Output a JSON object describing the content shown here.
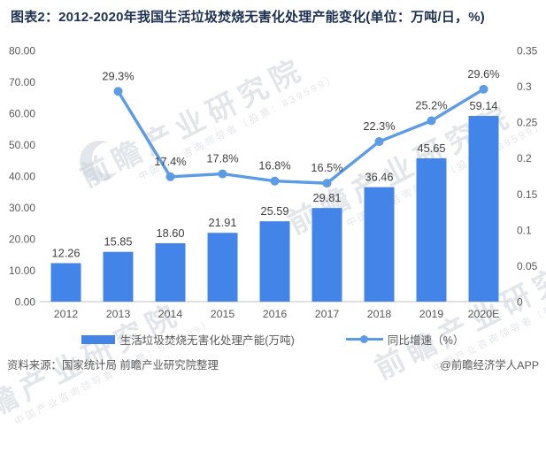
{
  "title": "图表2：2012-2020年我国生活垃圾焚烧无害化处理产能变化(单位：万吨/日，%)",
  "chart_data": {
    "type": "bar+line",
    "title": "图表2：2012-2020年我国生活垃圾焚烧无害化处理产能变化(单位：万吨/日，%)",
    "categories": [
      "2012",
      "2013",
      "2014",
      "2015",
      "2016",
      "2017",
      "2018",
      "2019",
      "2020E"
    ],
    "series": [
      {
        "name": "生活垃圾焚烧无害化处理产能(万吨)",
        "type": "bar",
        "axis": "left",
        "color": "#4284e8",
        "values": [
          12.26,
          15.85,
          18.6,
          21.91,
          25.59,
          29.81,
          36.46,
          45.65,
          59.14
        ],
        "labels": [
          "12.26",
          "15.85",
          "18.60",
          "21.91",
          "25.59",
          "29.81",
          "36.46",
          "45.65",
          "59.14"
        ]
      },
      {
        "name": "同比增速（%）",
        "type": "line",
        "axis": "right",
        "color": "#5c9ce6",
        "start_index": 1,
        "values": [
          29.3,
          17.4,
          17.8,
          16.8,
          16.5,
          22.3,
          25.2,
          29.6
        ],
        "labels": [
          "29.3%",
          "17.4%",
          "17.8%",
          "16.8%",
          "16.5%",
          "22.3%",
          "25.2%",
          "29.6%"
        ]
      }
    ],
    "left_axis": {
      "min": 0,
      "max": 80,
      "ticks": [
        "0.00",
        "10.00",
        "20.00",
        "30.00",
        "40.00",
        "50.00",
        "60.00",
        "70.00",
        "80.00"
      ]
    },
    "right_axis": {
      "min": 0,
      "max": 0.35,
      "ticks": [
        "0",
        "0.05",
        "0.1",
        "0.15",
        "0.2",
        "0.25",
        "0.3",
        "0.35"
      ]
    },
    "grid": false,
    "legend_position": "bottom"
  },
  "watermark": {
    "main": "前瞻产业研究院",
    "sub": "中国产业咨询领导者（股票：839599）"
  },
  "footer": {
    "source": "资料来源：国家统计局 前瞻产业研究院整理",
    "credit": "@前瞻经济学人APP"
  }
}
